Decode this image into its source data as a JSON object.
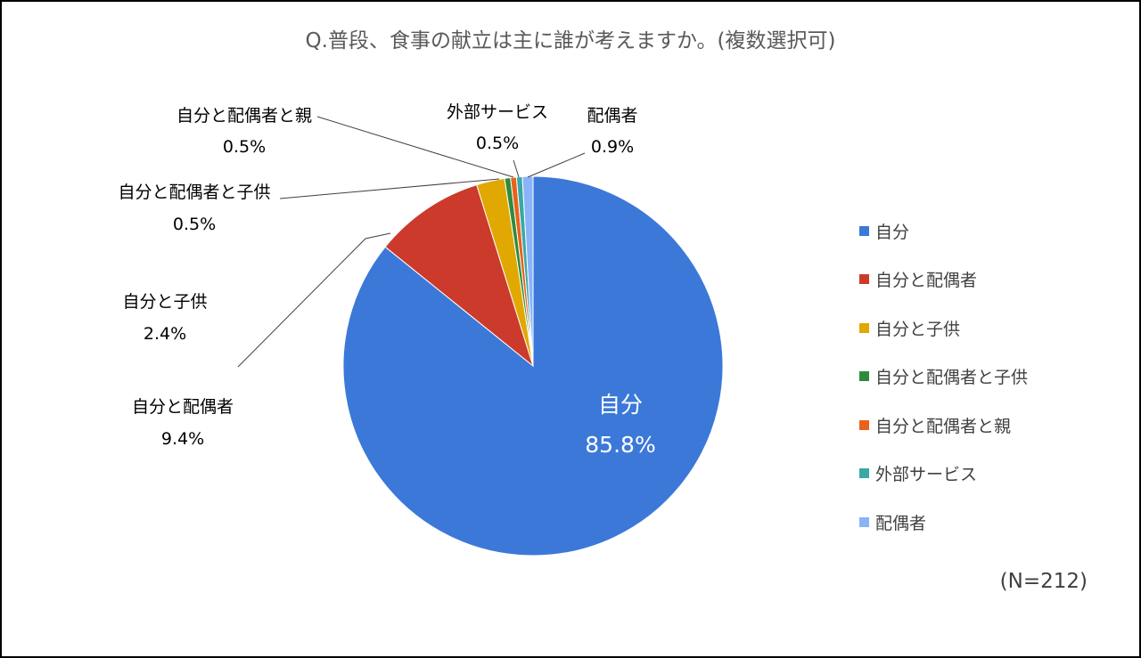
{
  "title": "Q.普段、食事の献立は主に誰が考えますか。(複数選択可)",
  "note": "(N=212)",
  "colors": {
    "自分": "#3c78d8",
    "自分と配偶者": "#cc3a2b",
    "自分と子供": "#e0a800",
    "自分と配偶者と子供": "#2e8b3e",
    "自分と配偶者と親": "#e8621a",
    "外部サービス": "#3aa8a8",
    "配偶者": "#8ab4f8"
  },
  "chart_data": {
    "type": "pie",
    "title": "Q.普段、食事の献立は主に誰が考えますか。(複数選択可)",
    "categories": [
      "自分",
      "自分と配偶者",
      "自分と子供",
      "自分と配偶者と子供",
      "自分と配偶者と親",
      "外部サービス",
      "配偶者"
    ],
    "values": [
      85.8,
      9.4,
      2.4,
      0.5,
      0.5,
      0.5,
      0.9
    ],
    "data_labels": [
      "85.8%",
      "9.4%",
      "2.4%",
      "0.5%",
      "0.5%",
      "0.5%",
      "0.9%"
    ],
    "legend_position": "right"
  }
}
